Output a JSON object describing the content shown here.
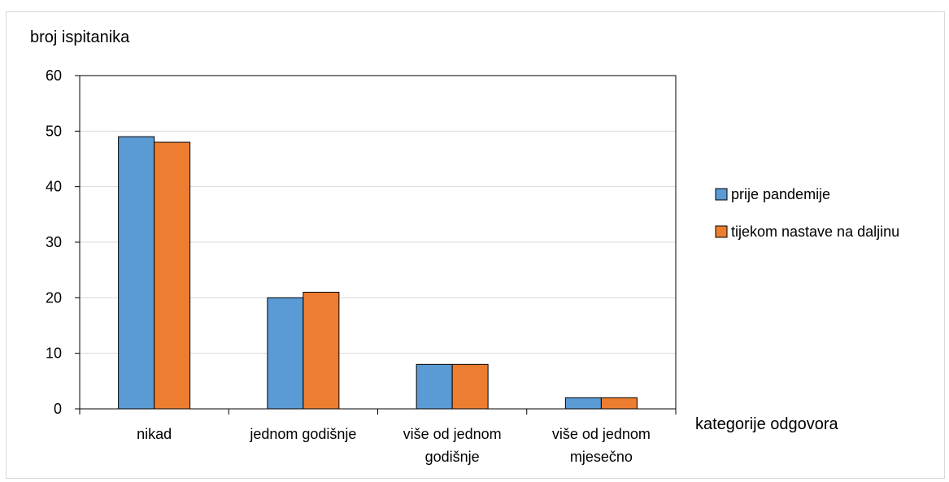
{
  "chart_data": {
    "type": "bar",
    "title": "",
    "ylabel": "broj ispitanika",
    "xlabel": "kategorije odgovora",
    "ylim": [
      0,
      60
    ],
    "yticks": [
      0,
      10,
      20,
      30,
      40,
      50,
      60
    ],
    "grid": true,
    "legend_position": "right",
    "categories": [
      [
        "nikad"
      ],
      [
        "jednom godišnje"
      ],
      [
        "više od jednom",
        "godišnje"
      ],
      [
        "više od jednom",
        "mjesečno"
      ]
    ],
    "series": [
      {
        "name": "prije pandemije",
        "color": "#5b9bd5",
        "values": [
          49,
          20,
          8,
          2
        ]
      },
      {
        "name": "tijekom nastave na daljinu",
        "color": "#ed7d31",
        "values": [
          48,
          21,
          8,
          2
        ]
      }
    ]
  }
}
